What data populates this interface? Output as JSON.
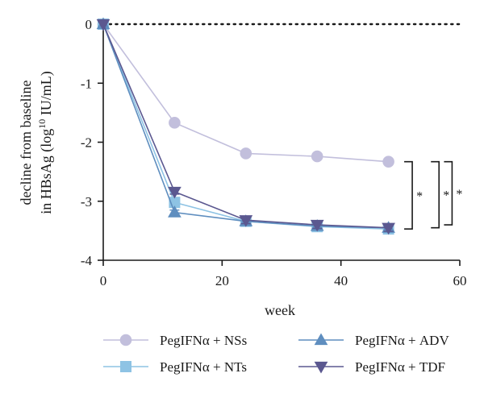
{
  "chart_data": {
    "type": "line",
    "xlabel": "week",
    "ylabel_line1": "decline from baseline",
    "ylabel_line2_prefix": "in HBsAg (log",
    "ylabel_line2_sup": "10",
    "ylabel_line2_suffix": " IU/mL)",
    "xlim": [
      0,
      60
    ],
    "ylim": [
      -4,
      0
    ],
    "xticks": [
      0,
      20,
      40,
      60
    ],
    "yticks": [
      0,
      -1,
      -2,
      -3,
      -4
    ],
    "reference_line_y": 0,
    "series": [
      {
        "name": "PegIFNα + NSs",
        "marker": "circle",
        "color": "#c2bfdc",
        "x": [
          0,
          12,
          24,
          36,
          48
        ],
        "y": [
          0,
          -1.67,
          -2.19,
          -2.24,
          -2.33
        ],
        "err": [
          0,
          0,
          0,
          0,
          0
        ]
      },
      {
        "name": "PegIFNα + NTs",
        "marker": "square",
        "color": "#8ec3e4",
        "x": [
          0,
          12,
          24,
          36,
          48
        ],
        "y": [
          0,
          -3.02,
          -3.34,
          -3.43,
          -3.47
        ],
        "err": [
          0,
          0.05,
          0.05,
          0.05,
          0.05
        ]
      },
      {
        "name": "PegIFNα + ADV",
        "marker": "triangle-up",
        "color": "#5f8ebf",
        "x": [
          0,
          12,
          24,
          36,
          48
        ],
        "y": [
          0,
          -3.19,
          -3.34,
          -3.42,
          -3.45
        ],
        "err": [
          0,
          0.04,
          0.06,
          0.06,
          0.06
        ]
      },
      {
        "name": "PegIFNα + TDF",
        "marker": "triangle-down",
        "color": "#5b5890",
        "x": [
          0,
          12,
          24,
          36,
          48
        ],
        "y": [
          0,
          -2.84,
          -3.32,
          -3.4,
          -3.45
        ],
        "err": [
          0,
          0.04,
          0.06,
          0.06,
          0.06
        ]
      }
    ],
    "significance": [
      {
        "label": "*",
        "x_bracket": 52,
        "y_top": -2.33,
        "y_bottom": -3.47
      },
      {
        "label": "*",
        "x_bracket": 56.5,
        "y_top": -2.33,
        "y_bottom": -3.45
      },
      {
        "label": "*",
        "x_bracket": 58.7,
        "y_top": -2.33,
        "y_bottom": -3.4
      }
    ],
    "legend_order": [
      0,
      2,
      1,
      3
    ],
    "legend_position": "bottom"
  }
}
